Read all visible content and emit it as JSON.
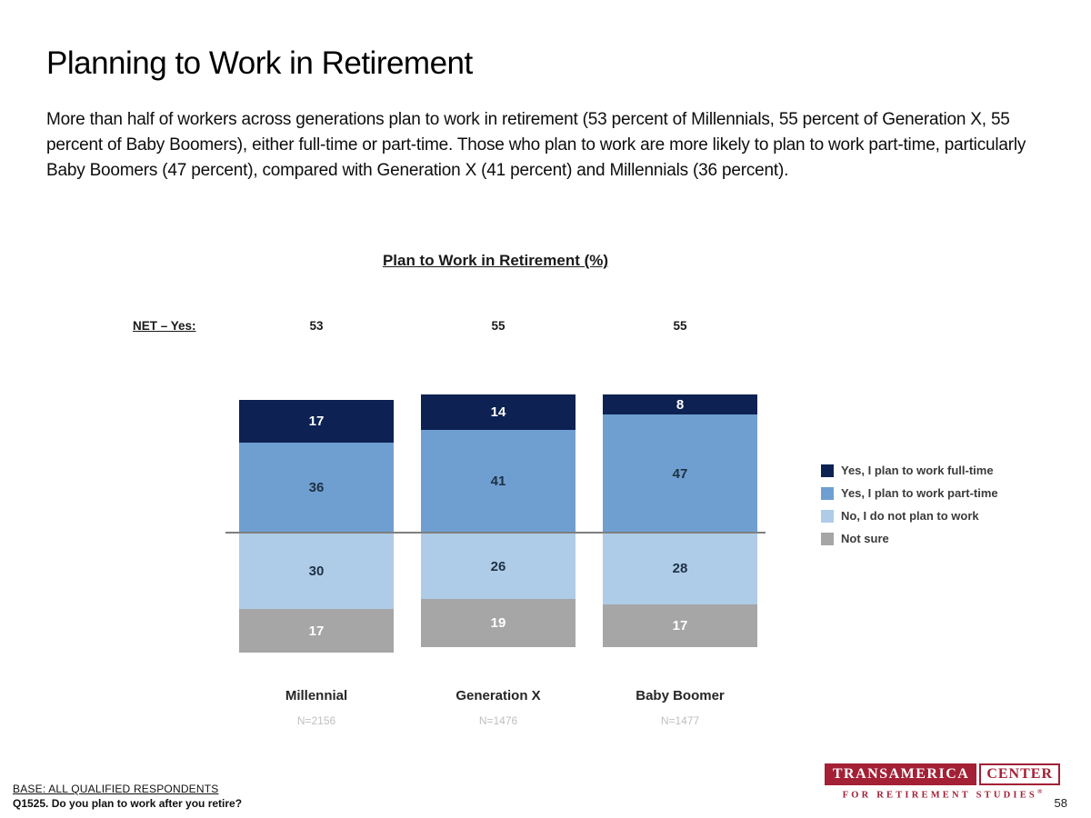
{
  "slide": {
    "title": "Planning to Work in Retirement",
    "paragraph": "More than half of workers across generations plan to work in retirement (53 percent of Millennials, 55 percent of Generation X, 55 percent of Baby Boomers), either full-time or part-time. Those who plan to work are more likely to plan to work part-time, particularly Baby Boomers (47 percent), compared with Generation X (41 percent) and Millennials (36 percent).",
    "page_number": "58"
  },
  "chart_data": {
    "type": "bar",
    "stacked": true,
    "diverging_baseline": "between part-time and no segments",
    "title": "Plan to Work in Retirement (%)",
    "net_label": "NET – Yes:",
    "net_values": [
      "53",
      "55",
      "55"
    ],
    "categories": [
      "Millennial",
      "Generation X",
      "Baby Boomer"
    ],
    "sample_sizes": [
      "N=2156",
      "N=1476",
      "N=1477"
    ],
    "series": [
      {
        "name": "Yes, I plan to work full-time",
        "color": "#0d2152",
        "label_color": "#ffffff",
        "values": [
          17,
          14,
          8
        ]
      },
      {
        "name": "Yes, I plan to work part-time",
        "color": "#6f9fd0",
        "label_color": "#1f3043",
        "values": [
          36,
          41,
          47
        ]
      },
      {
        "name": "No, I do not plan to work",
        "color": "#aecce8",
        "label_color": "#1f3043",
        "values": [
          30,
          26,
          28
        ]
      },
      {
        "name": "Not sure",
        "color": "#a6a6a6",
        "label_color": "#ffffff",
        "values": [
          17,
          19,
          17
        ]
      }
    ],
    "legend_position": "right",
    "grid": false
  },
  "footer": {
    "base_note": "BASE: ALL QUALIFIED RESPONDENTS",
    "question": "Q1525. Do you plan to work after you retire?"
  },
  "logo": {
    "primary": "TRANSAMERICA",
    "secondary": "CENTER",
    "tagline": "FOR RETIREMENT STUDIES",
    "registered_mark": "®",
    "color": "#a32035"
  }
}
